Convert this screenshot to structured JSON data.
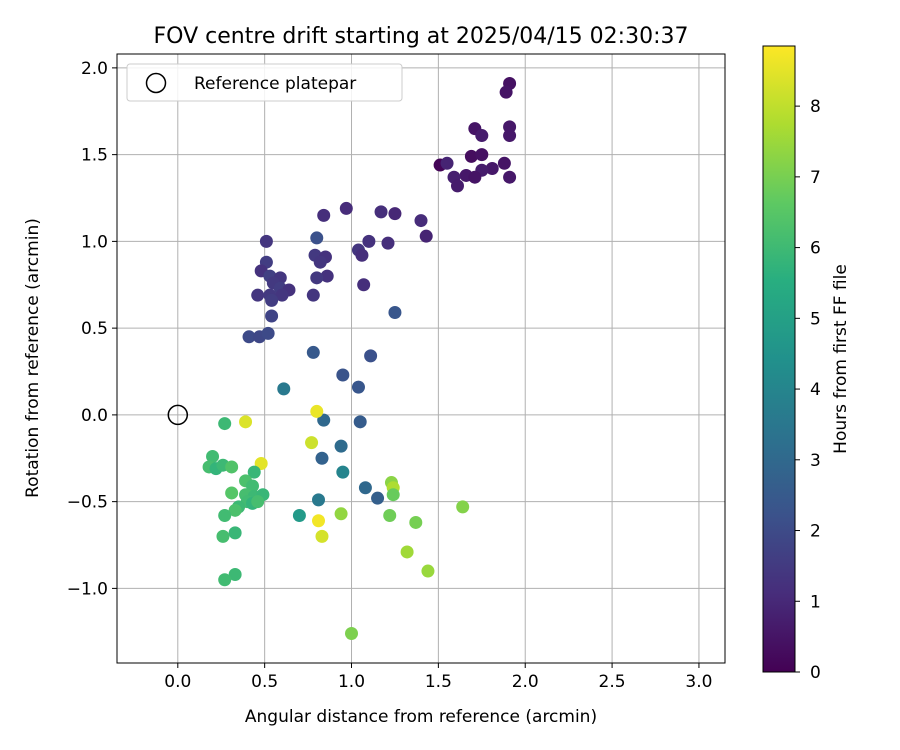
{
  "chart_data": {
    "type": "scatter",
    "title": "FOV centre drift starting at 2025/04/15 02:30:37",
    "xlabel": "Angular distance from reference (arcmin)",
    "ylabel": "Rotation from reference (arcmin)",
    "xlim": [
      -0.35,
      3.15
    ],
    "ylim": [
      -1.43,
      2.08
    ],
    "xticks": [
      0.0,
      0.5,
      1.0,
      1.5,
      2.0,
      2.5,
      3.0
    ],
    "xtick_labels": [
      "0.0",
      "0.5",
      "1.0",
      "1.5",
      "2.0",
      "2.5",
      "3.0"
    ],
    "yticks": [
      -1.0,
      -0.5,
      0.0,
      0.5,
      1.0,
      1.5,
      2.0
    ],
    "ytick_labels": [
      "−1.0",
      "−0.5",
      "0.0",
      "0.5",
      "1.0",
      "1.5",
      "2.0"
    ],
    "grid": true,
    "legend": {
      "placement": "top-left",
      "label": "Reference platepar"
    },
    "reference_point": {
      "x": 0.0,
      "y": 0.0
    },
    "colorbar": {
      "label": "Hours from first FF file",
      "min": 0,
      "max": 8.85,
      "ticks": [
        0,
        1,
        2,
        3,
        4,
        5,
        6,
        7,
        8
      ],
      "colormap": "viridis"
    },
    "points": [
      {
        "x": 1.91,
        "y": 1.91,
        "h": 0.4
      },
      {
        "x": 1.89,
        "y": 1.86,
        "h": 0.5
      },
      {
        "x": 1.91,
        "y": 1.66,
        "h": 0.6
      },
      {
        "x": 1.71,
        "y": 1.65,
        "h": 0.5
      },
      {
        "x": 1.75,
        "y": 1.61,
        "h": 0.7
      },
      {
        "x": 1.91,
        "y": 1.61,
        "h": 0.6
      },
      {
        "x": 1.69,
        "y": 1.49,
        "h": 0.3
      },
      {
        "x": 1.75,
        "y": 1.5,
        "h": 0.4
      },
      {
        "x": 1.51,
        "y": 1.44,
        "h": 0.1
      },
      {
        "x": 1.55,
        "y": 1.45,
        "h": 0.9
      },
      {
        "x": 1.88,
        "y": 1.45,
        "h": 0.5
      },
      {
        "x": 1.81,
        "y": 1.42,
        "h": 0.6
      },
      {
        "x": 1.75,
        "y": 1.41,
        "h": 0.7
      },
      {
        "x": 1.66,
        "y": 1.38,
        "h": 0.6
      },
      {
        "x": 1.59,
        "y": 1.37,
        "h": 0.8
      },
      {
        "x": 1.71,
        "y": 1.37,
        "h": 0.5
      },
      {
        "x": 1.91,
        "y": 1.37,
        "h": 0.6
      },
      {
        "x": 1.61,
        "y": 1.32,
        "h": 0.7
      },
      {
        "x": 0.97,
        "y": 1.19,
        "h": 1.1
      },
      {
        "x": 0.84,
        "y": 1.15,
        "h": 1.2
      },
      {
        "x": 1.17,
        "y": 1.17,
        "h": 1.2
      },
      {
        "x": 1.25,
        "y": 1.16,
        "h": 1.0
      },
      {
        "x": 1.4,
        "y": 1.12,
        "h": 1.1
      },
      {
        "x": 1.43,
        "y": 1.03,
        "h": 0.9
      },
      {
        "x": 0.8,
        "y": 1.02,
        "h": 2.2
      },
      {
        "x": 0.51,
        "y": 1.0,
        "h": 1.4
      },
      {
        "x": 1.1,
        "y": 1.0,
        "h": 1.3
      },
      {
        "x": 1.21,
        "y": 0.99,
        "h": 1.2
      },
      {
        "x": 1.04,
        "y": 0.95,
        "h": 1.4
      },
      {
        "x": 1.06,
        "y": 0.92,
        "h": 1.2
      },
      {
        "x": 0.79,
        "y": 0.92,
        "h": 1.5
      },
      {
        "x": 0.85,
        "y": 0.91,
        "h": 1.3
      },
      {
        "x": 0.51,
        "y": 0.88,
        "h": 1.6
      },
      {
        "x": 0.82,
        "y": 0.88,
        "h": 1.4
      },
      {
        "x": 0.48,
        "y": 0.83,
        "h": 1.3
      },
      {
        "x": 0.53,
        "y": 0.8,
        "h": 1.7
      },
      {
        "x": 0.59,
        "y": 0.79,
        "h": 1.4
      },
      {
        "x": 0.86,
        "y": 0.8,
        "h": 1.3
      },
      {
        "x": 0.8,
        "y": 0.79,
        "h": 1.5
      },
      {
        "x": 0.55,
        "y": 0.76,
        "h": 1.5
      },
      {
        "x": 0.59,
        "y": 0.73,
        "h": 1.6
      },
      {
        "x": 0.64,
        "y": 0.72,
        "h": 1.3
      },
      {
        "x": 1.07,
        "y": 0.75,
        "h": 1.2
      },
      {
        "x": 0.46,
        "y": 0.69,
        "h": 1.4
      },
      {
        "x": 0.53,
        "y": 0.69,
        "h": 1.5
      },
      {
        "x": 0.6,
        "y": 0.69,
        "h": 1.4
      },
      {
        "x": 0.78,
        "y": 0.69,
        "h": 1.4
      },
      {
        "x": 0.54,
        "y": 0.66,
        "h": 1.6
      },
      {
        "x": 0.54,
        "y": 0.57,
        "h": 1.8
      },
      {
        "x": 1.25,
        "y": 0.59,
        "h": 2.4
      },
      {
        "x": 0.41,
        "y": 0.45,
        "h": 2.0
      },
      {
        "x": 0.47,
        "y": 0.45,
        "h": 1.9
      },
      {
        "x": 0.52,
        "y": 0.47,
        "h": 2.0
      },
      {
        "x": 0.78,
        "y": 0.36,
        "h": 2.5
      },
      {
        "x": 1.11,
        "y": 0.34,
        "h": 2.2
      },
      {
        "x": 0.95,
        "y": 0.23,
        "h": 2.3
      },
      {
        "x": 1.04,
        "y": 0.16,
        "h": 2.4
      },
      {
        "x": 0.61,
        "y": 0.15,
        "h": 3.6
      },
      {
        "x": 0.84,
        "y": -0.03,
        "h": 3.0
      },
      {
        "x": 1.05,
        "y": -0.04,
        "h": 2.6
      },
      {
        "x": 0.94,
        "y": -0.18,
        "h": 3.1
      },
      {
        "x": 0.83,
        "y": -0.25,
        "h": 2.8
      },
      {
        "x": 0.95,
        "y": -0.33,
        "h": 4.0
      },
      {
        "x": 1.08,
        "y": -0.42,
        "h": 3.0
      },
      {
        "x": 1.15,
        "y": -0.48,
        "h": 2.7
      },
      {
        "x": 0.81,
        "y": -0.49,
        "h": 3.6
      },
      {
        "x": 0.7,
        "y": -0.58,
        "h": 4.8
      },
      {
        "x": 0.39,
        "y": -0.04,
        "h": 8.4
      },
      {
        "x": 0.8,
        "y": 0.02,
        "h": 8.6
      },
      {
        "x": 0.77,
        "y": -0.16,
        "h": 8.2
      },
      {
        "x": 0.48,
        "y": -0.28,
        "h": 8.5
      },
      {
        "x": 0.81,
        "y": -0.61,
        "h": 8.7
      },
      {
        "x": 0.83,
        "y": -0.7,
        "h": 8.3
      },
      {
        "x": 0.27,
        "y": -0.05,
        "h": 6.0
      },
      {
        "x": 0.2,
        "y": -0.24,
        "h": 6.1
      },
      {
        "x": 0.18,
        "y": -0.3,
        "h": 6.2
      },
      {
        "x": 0.22,
        "y": -0.31,
        "h": 5.8
      },
      {
        "x": 0.26,
        "y": -0.29,
        "h": 6.0
      },
      {
        "x": 0.31,
        "y": -0.3,
        "h": 6.4
      },
      {
        "x": 0.44,
        "y": -0.33,
        "h": 5.9
      },
      {
        "x": 0.39,
        "y": -0.38,
        "h": 6.3
      },
      {
        "x": 0.43,
        "y": -0.41,
        "h": 6.1
      },
      {
        "x": 0.31,
        "y": -0.45,
        "h": 6.5
      },
      {
        "x": 0.39,
        "y": -0.46,
        "h": 6.2
      },
      {
        "x": 0.44,
        "y": -0.47,
        "h": 6.0
      },
      {
        "x": 0.49,
        "y": -0.46,
        "h": 5.9
      },
      {
        "x": 0.4,
        "y": -0.5,
        "h": 6.1
      },
      {
        "x": 0.43,
        "y": -0.51,
        "h": 5.8
      },
      {
        "x": 0.46,
        "y": -0.5,
        "h": 6.2
      },
      {
        "x": 0.35,
        "y": -0.53,
        "h": 6.0
      },
      {
        "x": 0.33,
        "y": -0.55,
        "h": 6.3
      },
      {
        "x": 0.27,
        "y": -0.58,
        "h": 6.1
      },
      {
        "x": 0.33,
        "y": -0.68,
        "h": 5.9
      },
      {
        "x": 0.26,
        "y": -0.7,
        "h": 6.2
      },
      {
        "x": 0.33,
        "y": -0.92,
        "h": 6.0
      },
      {
        "x": 0.27,
        "y": -0.95,
        "h": 6.1
      },
      {
        "x": 1.23,
        "y": -0.39,
        "h": 7.3
      },
      {
        "x": 1.24,
        "y": -0.42,
        "h": 7.8
      },
      {
        "x": 1.24,
        "y": -0.46,
        "h": 6.8
      },
      {
        "x": 1.22,
        "y": -0.58,
        "h": 6.9
      },
      {
        "x": 1.37,
        "y": -0.62,
        "h": 7.0
      },
      {
        "x": 1.64,
        "y": -0.53,
        "h": 7.2
      },
      {
        "x": 0.94,
        "y": -0.57,
        "h": 7.4
      },
      {
        "x": 1.32,
        "y": -0.79,
        "h": 7.6
      },
      {
        "x": 1.44,
        "y": -0.9,
        "h": 7.5
      },
      {
        "x": 1.0,
        "y": -1.26,
        "h": 7.1
      }
    ]
  }
}
